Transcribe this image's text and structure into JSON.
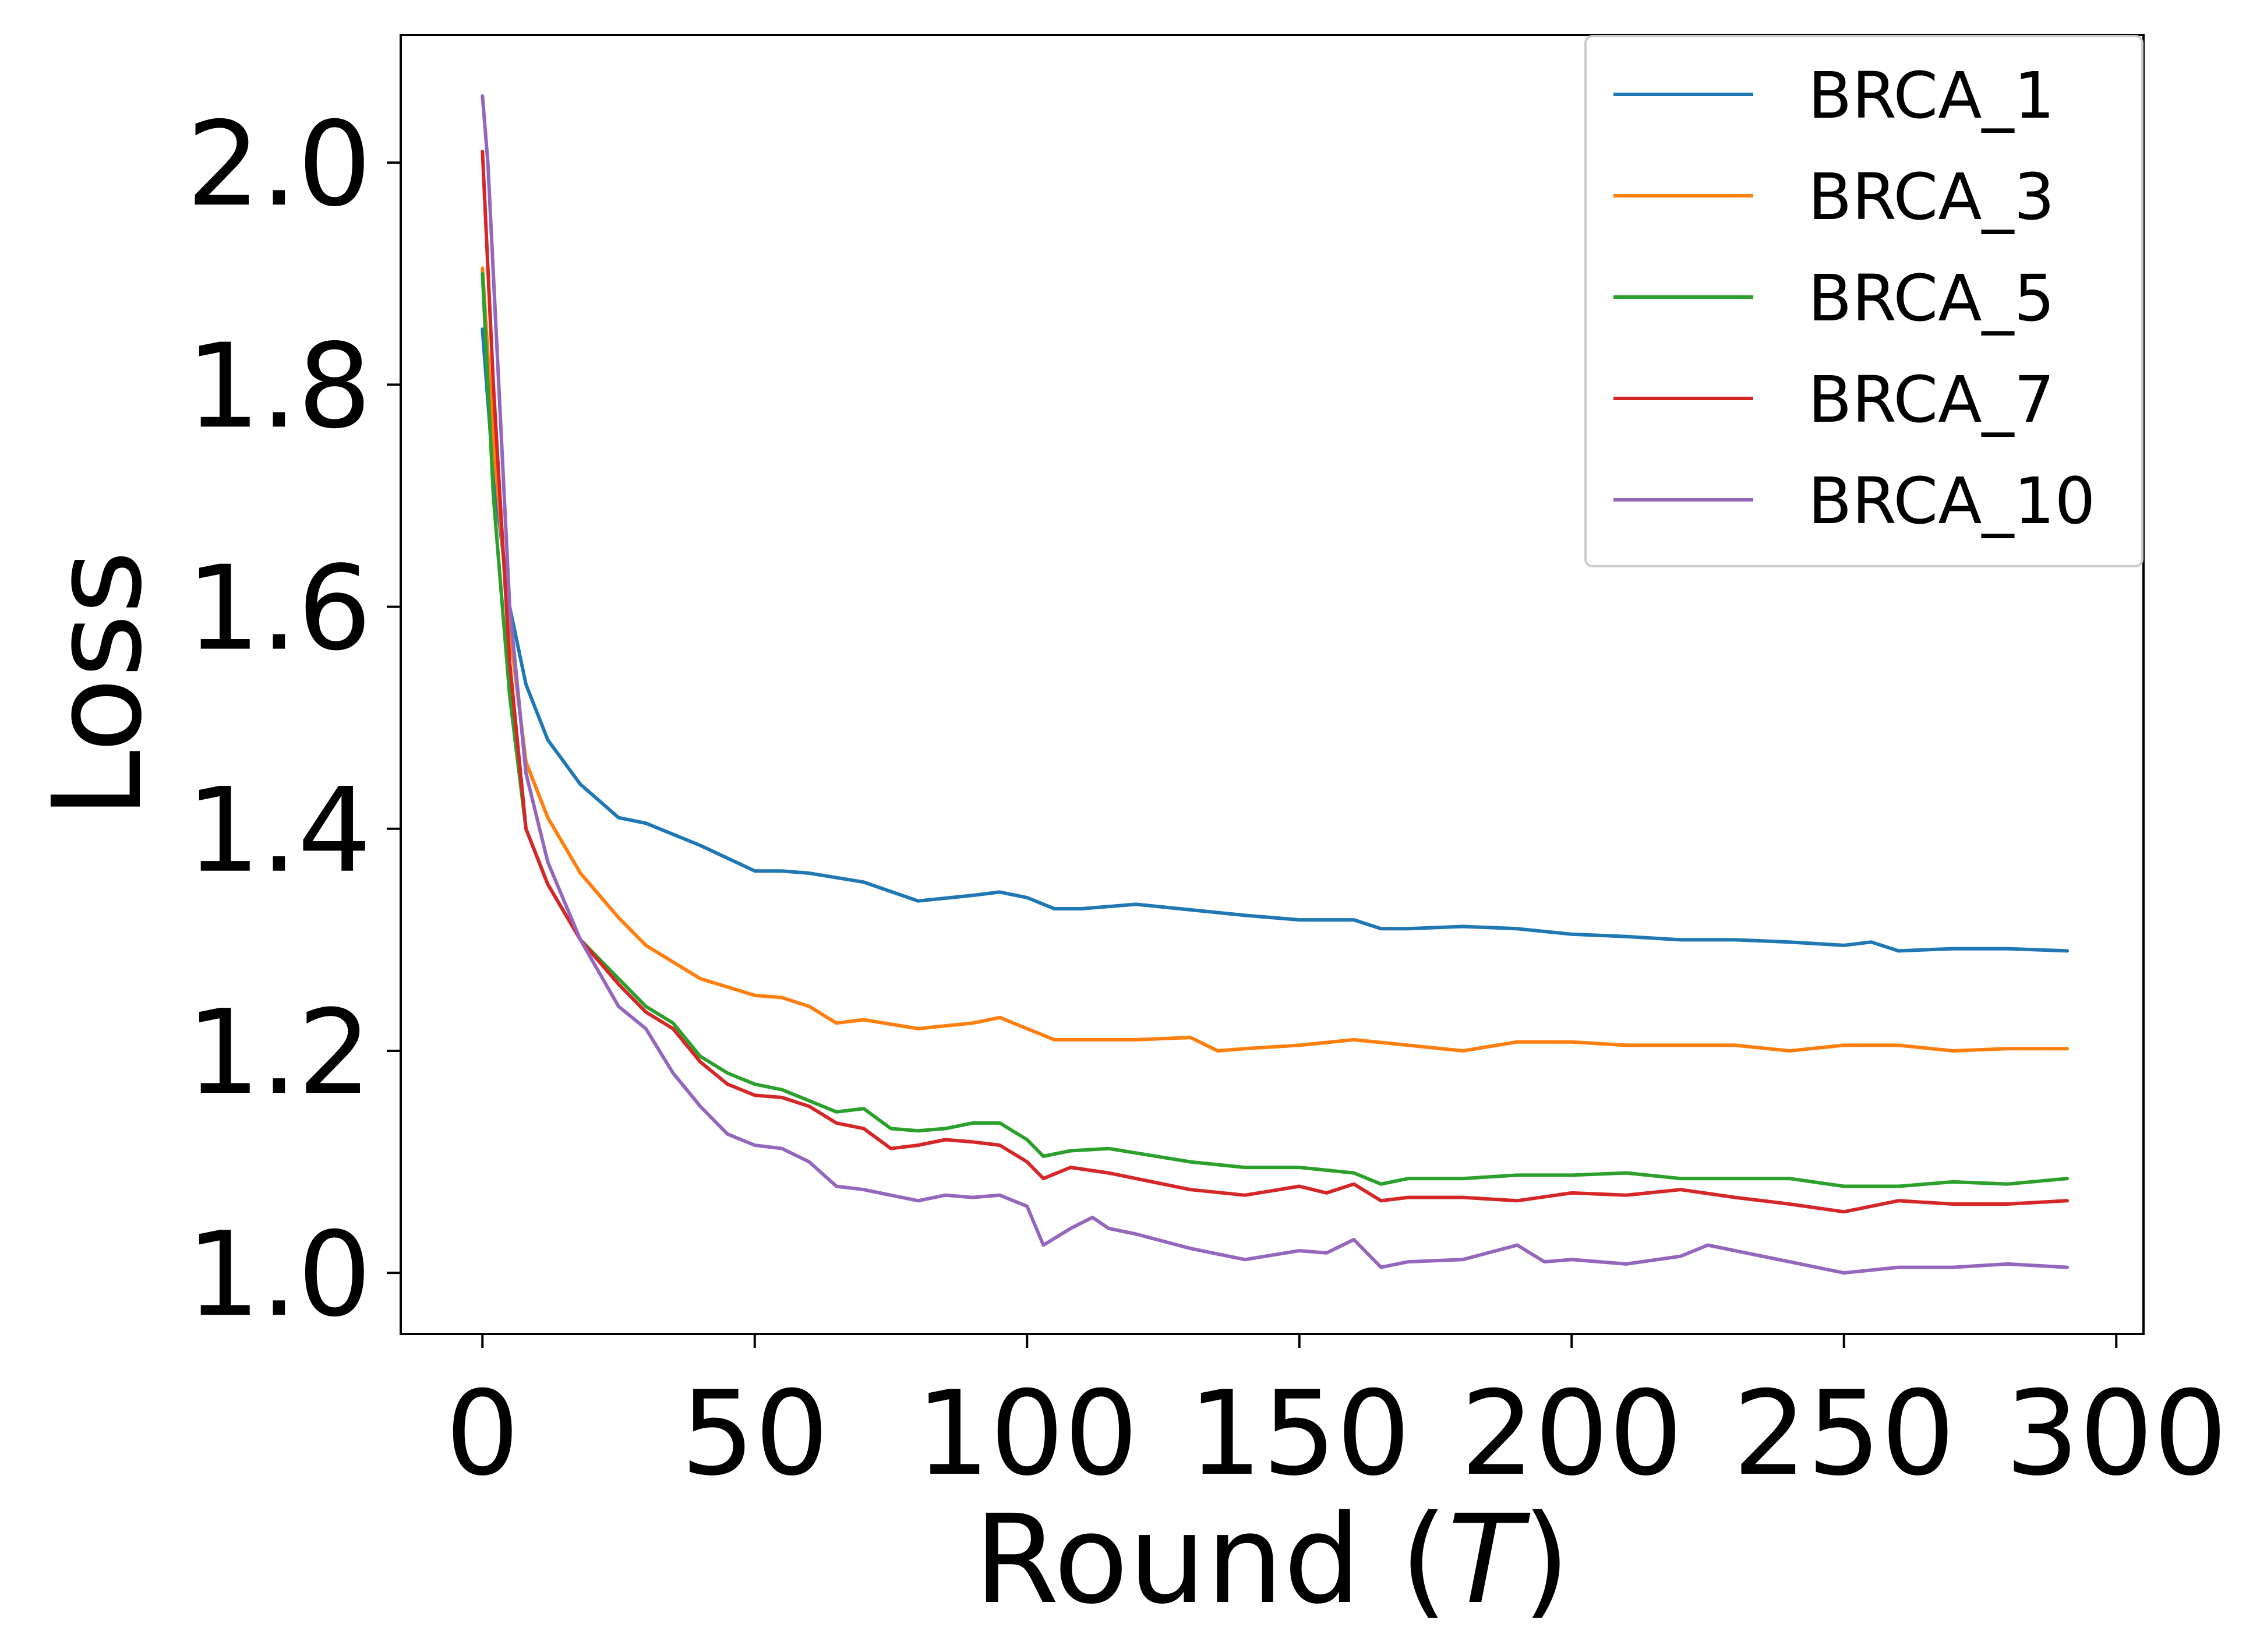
{
  "chart_data": {
    "type": "line",
    "title": "",
    "xlabel": "Round (",
    "xlabel_var": "T",
    "xlabel_close": ")",
    "ylabel": "Loss",
    "xlim": [
      -15,
      305
    ],
    "ylim": [
      0.945,
      2.115
    ],
    "xticks": [
      0,
      50,
      100,
      150,
      200,
      250,
      300
    ],
    "xtick_labels": [
      "0",
      "50",
      "100",
      "150",
      "200",
      "250",
      "300"
    ],
    "yticks": [
      1.0,
      1.2,
      1.4,
      1.6,
      1.8,
      2.0
    ],
    "ytick_labels": [
      "1.0",
      "1.2",
      "1.4",
      "1.6",
      "1.8",
      "2.0"
    ],
    "grid": false,
    "legend_position": "top-right",
    "series": [
      {
        "name": "BRCA_1",
        "color": "#1f77b4",
        "points": [
          [
            0,
            1.85
          ],
          [
            2,
            1.72
          ],
          [
            5,
            1.6
          ],
          [
            8,
            1.53
          ],
          [
            12,
            1.48
          ],
          [
            18,
            1.44
          ],
          [
            25,
            1.41
          ],
          [
            30,
            1.405
          ],
          [
            40,
            1.385
          ],
          [
            50,
            1.362
          ],
          [
            55,
            1.362
          ],
          [
            60,
            1.36
          ],
          [
            70,
            1.352
          ],
          [
            80,
            1.335
          ],
          [
            90,
            1.34
          ],
          [
            95,
            1.343
          ],
          [
            100,
            1.338
          ],
          [
            105,
            1.328
          ],
          [
            110,
            1.328
          ],
          [
            120,
            1.332
          ],
          [
            130,
            1.327
          ],
          [
            140,
            1.322
          ],
          [
            150,
            1.318
          ],
          [
            160,
            1.318
          ],
          [
            165,
            1.31
          ],
          [
            170,
            1.31
          ],
          [
            180,
            1.312
          ],
          [
            190,
            1.31
          ],
          [
            200,
            1.305
          ],
          [
            210,
            1.303
          ],
          [
            220,
            1.3
          ],
          [
            230,
            1.3
          ],
          [
            240,
            1.298
          ],
          [
            250,
            1.295
          ],
          [
            255,
            1.298
          ],
          [
            260,
            1.29
          ],
          [
            270,
            1.292
          ],
          [
            280,
            1.292
          ],
          [
            291,
            1.29
          ]
        ]
      },
      {
        "name": "BRCA_3",
        "color": "#ff7f0e",
        "points": [
          [
            0,
            1.905
          ],
          [
            2,
            1.75
          ],
          [
            5,
            1.58
          ],
          [
            8,
            1.46
          ],
          [
            12,
            1.41
          ],
          [
            18,
            1.36
          ],
          [
            25,
            1.32
          ],
          [
            30,
            1.295
          ],
          [
            40,
            1.265
          ],
          [
            50,
            1.25
          ],
          [
            55,
            1.248
          ],
          [
            60,
            1.24
          ],
          [
            65,
            1.225
          ],
          [
            70,
            1.228
          ],
          [
            80,
            1.22
          ],
          [
            90,
            1.225
          ],
          [
            95,
            1.23
          ],
          [
            100,
            1.22
          ],
          [
            105,
            1.21
          ],
          [
            110,
            1.21
          ],
          [
            120,
            1.21
          ],
          [
            130,
            1.212
          ],
          [
            135,
            1.2
          ],
          [
            140,
            1.202
          ],
          [
            150,
            1.205
          ],
          [
            160,
            1.21
          ],
          [
            170,
            1.205
          ],
          [
            180,
            1.2
          ],
          [
            190,
            1.208
          ],
          [
            200,
            1.208
          ],
          [
            210,
            1.205
          ],
          [
            220,
            1.205
          ],
          [
            230,
            1.205
          ],
          [
            240,
            1.2
          ],
          [
            250,
            1.205
          ],
          [
            260,
            1.205
          ],
          [
            270,
            1.2
          ],
          [
            280,
            1.202
          ],
          [
            291,
            1.202
          ]
        ]
      },
      {
        "name": "BRCA_5",
        "color": "#2ca02c",
        "points": [
          [
            0,
            1.9
          ],
          [
            2,
            1.7
          ],
          [
            5,
            1.52
          ],
          [
            8,
            1.4
          ],
          [
            12,
            1.35
          ],
          [
            18,
            1.3
          ],
          [
            25,
            1.265
          ],
          [
            30,
            1.24
          ],
          [
            35,
            1.225
          ],
          [
            40,
            1.195
          ],
          [
            45,
            1.18
          ],
          [
            50,
            1.17
          ],
          [
            55,
            1.165
          ],
          [
            60,
            1.155
          ],
          [
            65,
            1.145
          ],
          [
            70,
            1.148
          ],
          [
            75,
            1.13
          ],
          [
            80,
            1.128
          ],
          [
            85,
            1.13
          ],
          [
            90,
            1.135
          ],
          [
            95,
            1.135
          ],
          [
            100,
            1.12
          ],
          [
            103,
            1.105
          ],
          [
            108,
            1.11
          ],
          [
            115,
            1.112
          ],
          [
            120,
            1.108
          ],
          [
            130,
            1.1
          ],
          [
            140,
            1.095
          ],
          [
            150,
            1.095
          ],
          [
            160,
            1.09
          ],
          [
            165,
            1.08
          ],
          [
            170,
            1.085
          ],
          [
            180,
            1.085
          ],
          [
            190,
            1.088
          ],
          [
            200,
            1.088
          ],
          [
            210,
            1.09
          ],
          [
            220,
            1.085
          ],
          [
            230,
            1.085
          ],
          [
            240,
            1.085
          ],
          [
            250,
            1.078
          ],
          [
            260,
            1.078
          ],
          [
            270,
            1.082
          ],
          [
            280,
            1.08
          ],
          [
            291,
            1.085
          ]
        ]
      },
      {
        "name": "BRCA_7",
        "color": "#d62728",
        "points": [
          [
            0,
            2.01
          ],
          [
            2,
            1.8
          ],
          [
            5,
            1.55
          ],
          [
            8,
            1.4
          ],
          [
            12,
            1.35
          ],
          [
            18,
            1.3
          ],
          [
            25,
            1.26
          ],
          [
            30,
            1.235
          ],
          [
            35,
            1.22
          ],
          [
            40,
            1.19
          ],
          [
            45,
            1.17
          ],
          [
            50,
            1.16
          ],
          [
            55,
            1.158
          ],
          [
            60,
            1.15
          ],
          [
            65,
            1.135
          ],
          [
            70,
            1.13
          ],
          [
            75,
            1.112
          ],
          [
            80,
            1.115
          ],
          [
            85,
            1.12
          ],
          [
            90,
            1.118
          ],
          [
            95,
            1.115
          ],
          [
            100,
            1.1
          ],
          [
            103,
            1.085
          ],
          [
            108,
            1.095
          ],
          [
            115,
            1.09
          ],
          [
            120,
            1.085
          ],
          [
            130,
            1.075
          ],
          [
            140,
            1.07
          ],
          [
            150,
            1.078
          ],
          [
            155,
            1.072
          ],
          [
            160,
            1.08
          ],
          [
            165,
            1.065
          ],
          [
            170,
            1.068
          ],
          [
            180,
            1.068
          ],
          [
            190,
            1.065
          ],
          [
            200,
            1.072
          ],
          [
            210,
            1.07
          ],
          [
            220,
            1.075
          ],
          [
            230,
            1.068
          ],
          [
            240,
            1.062
          ],
          [
            250,
            1.055
          ],
          [
            255,
            1.06
          ],
          [
            260,
            1.065
          ],
          [
            270,
            1.062
          ],
          [
            280,
            1.062
          ],
          [
            291,
            1.065
          ]
        ]
      },
      {
        "name": "BRCA_10",
        "color": "#9467bd",
        "points": [
          [
            0,
            2.06
          ],
          [
            1,
            2.0
          ],
          [
            3,
            1.8
          ],
          [
            5,
            1.6
          ],
          [
            8,
            1.45
          ],
          [
            12,
            1.37
          ],
          [
            18,
            1.3
          ],
          [
            25,
            1.24
          ],
          [
            30,
            1.22
          ],
          [
            35,
            1.18
          ],
          [
            40,
            1.15
          ],
          [
            45,
            1.125
          ],
          [
            50,
            1.115
          ],
          [
            55,
            1.112
          ],
          [
            60,
            1.1
          ],
          [
            65,
            1.078
          ],
          [
            70,
            1.075
          ],
          [
            75,
            1.07
          ],
          [
            80,
            1.065
          ],
          [
            85,
            1.07
          ],
          [
            90,
            1.068
          ],
          [
            95,
            1.07
          ],
          [
            100,
            1.06
          ],
          [
            103,
            1.025
          ],
          [
            108,
            1.04
          ],
          [
            112,
            1.05
          ],
          [
            115,
            1.04
          ],
          [
            120,
            1.035
          ],
          [
            130,
            1.022
          ],
          [
            140,
            1.012
          ],
          [
            150,
            1.02
          ],
          [
            155,
            1.018
          ],
          [
            160,
            1.03
          ],
          [
            165,
            1.005
          ],
          [
            170,
            1.01
          ],
          [
            180,
            1.012
          ],
          [
            190,
            1.025
          ],
          [
            195,
            1.01
          ],
          [
            200,
            1.012
          ],
          [
            210,
            1.008
          ],
          [
            220,
            1.015
          ],
          [
            225,
            1.025
          ],
          [
            230,
            1.02
          ],
          [
            240,
            1.01
          ],
          [
            250,
            1.0
          ],
          [
            260,
            1.005
          ],
          [
            270,
            1.005
          ],
          [
            280,
            1.008
          ],
          [
            291,
            1.005
          ]
        ]
      }
    ]
  }
}
